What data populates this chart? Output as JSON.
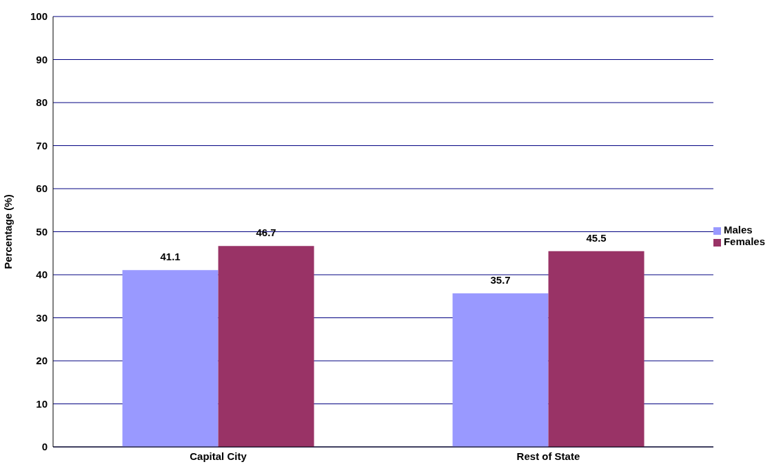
{
  "chart_data": {
    "type": "bar",
    "ylabel": "Percentage (%)",
    "categories": [
      "Capital City",
      "Rest of State"
    ],
    "series": [
      {
        "name": "Males",
        "color": "#9999ff",
        "values": [
          41.1,
          35.7
        ]
      },
      {
        "name": "Females",
        "color": "#993366",
        "values": [
          46.7,
          45.5
        ]
      }
    ],
    "ylim": [
      0,
      100
    ],
    "yticks": [
      0,
      10,
      20,
      30,
      40,
      50,
      60,
      70,
      80,
      90,
      100
    ],
    "grid": "y",
    "legend": "right",
    "data_labels": true
  }
}
